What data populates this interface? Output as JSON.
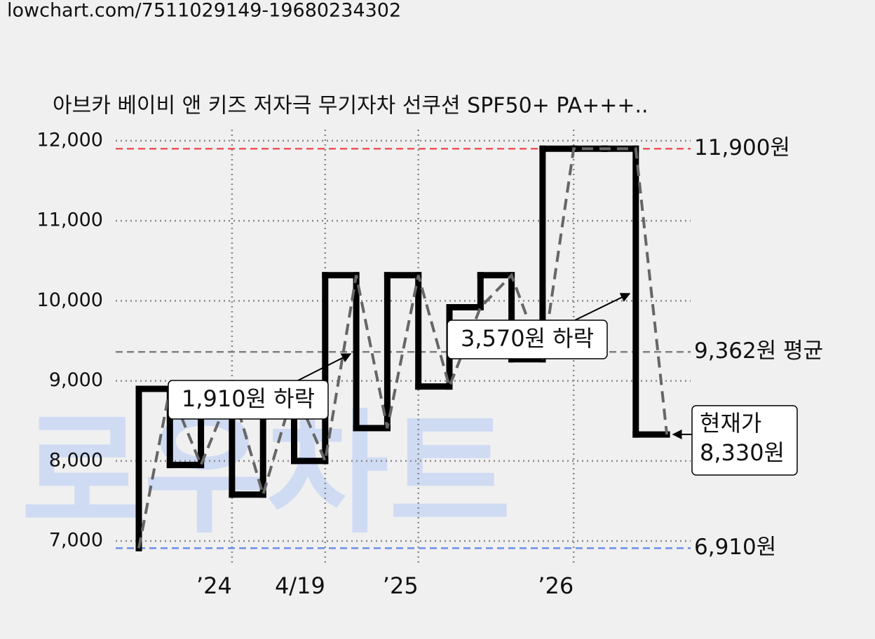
{
  "source": "lowchart.com/7511029149-19680234302",
  "chart_data": {
    "type": "step-line",
    "title": "아브카 베이비 앤 키즈 저자극 무기자차 선쿠션 SPF50+ PA+++..",
    "watermark": "로우차트",
    "categories": [
      null,
      null,
      null,
      "’24",
      null,
      null,
      "4/19",
      null,
      null,
      "’25",
      null,
      null,
      null,
      null,
      "’26",
      null,
      null,
      null
    ],
    "category_colors": [
      "#111",
      "#111",
      "#111",
      "#111",
      "#111",
      "#111",
      "#888",
      "#111",
      "#111",
      "#111",
      "#111",
      "#111",
      "#111",
      "#111",
      "#111",
      "#111",
      "#111",
      "#111"
    ],
    "series": [
      {
        "color": "#000000",
        "trend_color": "#666666",
        "values": [
          6910,
          8900,
          7950,
          8900,
          7580,
          8900,
          8000,
          10320,
          8410,
          10320,
          8930,
          9920,
          10320,
          9270,
          11900,
          11900,
          11900,
          8330
        ]
      }
    ],
    "ylim": [
      6800,
      12200
    ],
    "yticks": [
      {
        "value": 7000,
        "label": "7,000"
      },
      {
        "value": 8000,
        "label": "8,000"
      },
      {
        "value": 9000,
        "label": "9,000"
      },
      {
        "value": 10000,
        "label": "10,000"
      },
      {
        "value": 11000,
        "label": "11,000"
      },
      {
        "value": 12000,
        "label": "12,000"
      }
    ],
    "grid": true,
    "reference_lines": [
      {
        "value": 11900,
        "label": "11,900원",
        "color": "#f0555a"
      },
      {
        "value": 9362,
        "label": "9,362원 평균",
        "color": "#808080"
      },
      {
        "value": 6910,
        "label": "6,910원",
        "color": "#6b8ee8"
      }
    ],
    "annotations": [
      {
        "text": "1,910원 하락"
      },
      {
        "text": "3,570원 하락"
      },
      {
        "text": [
          "현재가",
          "8,330원"
        ]
      }
    ]
  }
}
